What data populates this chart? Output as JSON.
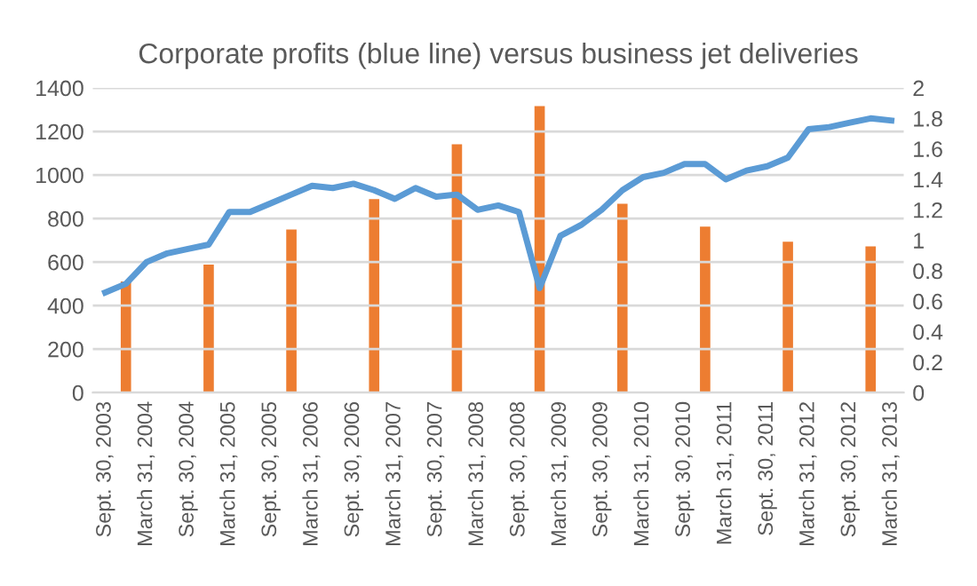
{
  "chart_data": {
    "type": "line",
    "title": "Corporate profits (blue line) versus business jet deliveries",
    "categories": [
      "Sept. 30, 2003",
      null,
      "March 31, 2004",
      null,
      "Sept. 30, 2004",
      null,
      "March 31, 2005",
      null,
      "Sept. 30, 2005",
      null,
      "March 31, 2006",
      null,
      "Sept. 30, 2006",
      null,
      "March 31, 2007",
      null,
      "Sept. 30, 2007",
      null,
      "March 31, 2008",
      null,
      "Sept. 30, 2008",
      null,
      "March 31, 2009",
      null,
      "Sept. 30, 2009",
      null,
      "March 31, 2010",
      null,
      "Sept. 30, 2010",
      null,
      "March 31, 2011",
      null,
      "Sept. 30, 2011",
      null,
      "March 31, 2012",
      null,
      "Sept. 30, 2012",
      null,
      "March 31, 2013"
    ],
    "series": [
      {
        "type": "bar",
        "axis": "y2",
        "color": "#ed7d31",
        "values": [
          null,
          0.73,
          null,
          null,
          null,
          0.84,
          null,
          null,
          null,
          1.07,
          null,
          null,
          null,
          1.27,
          null,
          null,
          null,
          1.63,
          null,
          null,
          null,
          1.88,
          null,
          null,
          null,
          1.24,
          null,
          null,
          null,
          1.09,
          null,
          null,
          null,
          0.99,
          null,
          null,
          null,
          0.96,
          null
        ]
      },
      {
        "color": "#5b9bd5",
        "values": [
          460,
          500,
          600,
          640,
          660,
          680,
          830,
          830,
          870,
          910,
          950,
          940,
          960,
          930,
          890,
          940,
          900,
          910,
          840,
          860,
          830,
          480,
          720,
          770,
          840,
          930,
          990,
          1010,
          1050,
          1050,
          980,
          1020,
          1040,
          1080,
          1210,
          1220,
          1240,
          1260,
          1250
        ]
      }
    ],
    "ylim": [
      0,
      1400
    ],
    "yticks": [
      0,
      200,
      400,
      600,
      800,
      1000,
      1200,
      1400
    ],
    "y2lim": [
      0,
      2
    ],
    "y2ticks": [
      0,
      0.2,
      0.4,
      0.6,
      0.8,
      1,
      1.2,
      1.4,
      1.6,
      1.8,
      2
    ],
    "grid": "y",
    "legend": false,
    "line_style": "solid",
    "marker": "none"
  }
}
